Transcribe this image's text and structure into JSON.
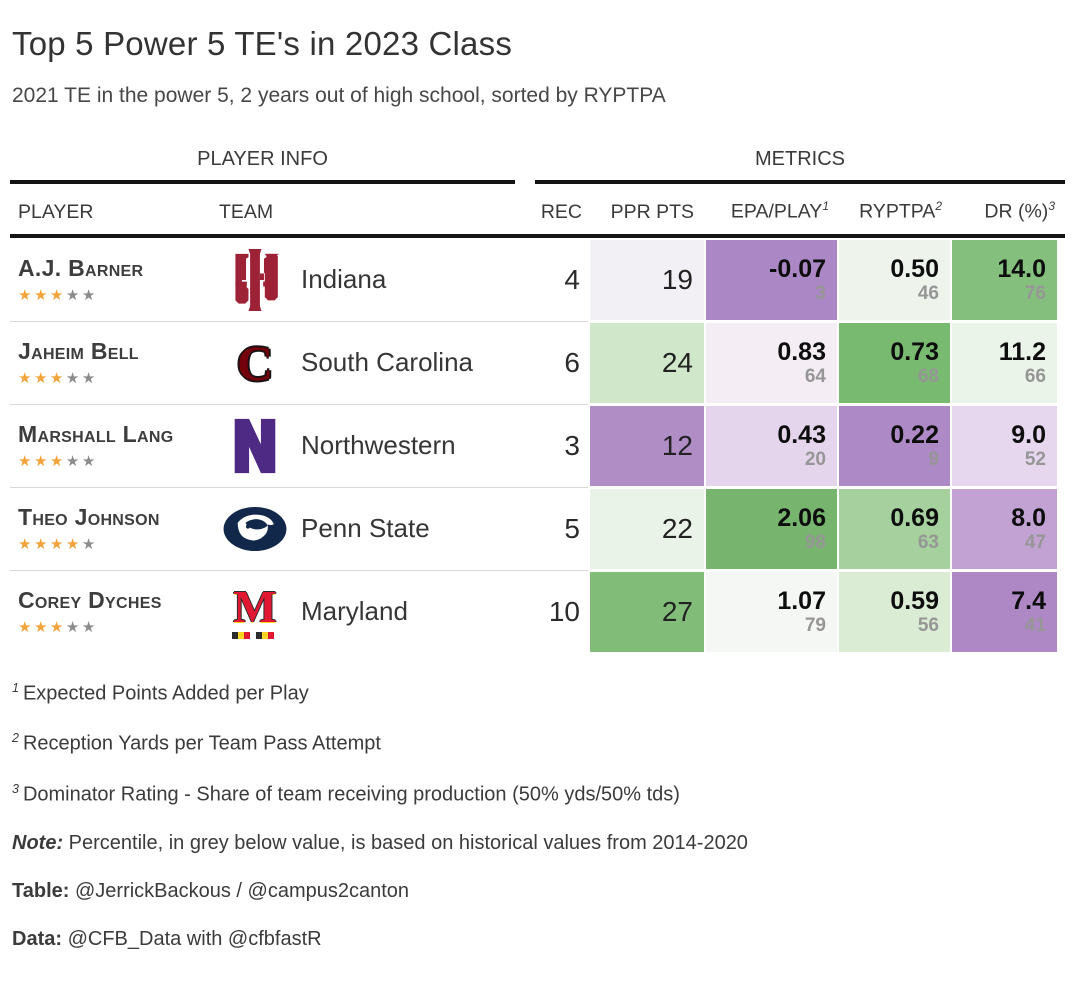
{
  "title": "Top 5 Power 5 TE's in 2023 Class",
  "subtitle": "2021 TE in the power 5, 2 years out of high school, sorted by RYPTPA",
  "table": {
    "groups": {
      "left": "PLAYER INFO",
      "right": "METRICS"
    },
    "columns": {
      "player": "PLAYER",
      "team": "TEAM",
      "rec": "REC",
      "ppr": "PPR PTS",
      "epa": "EPA/PLAY",
      "epa_sup": "1",
      "ryptpa": "RYPTPA",
      "ryptpa_sup": "2",
      "dr": "DR (%)",
      "dr_sup": "3"
    },
    "rows": [
      {
        "player": "A.J. Barner",
        "stars": 3,
        "stars_total": 5,
        "team": "Indiana",
        "logo": "indiana",
        "rec": "4",
        "ppr": {
          "value": "19",
          "bg": "#f3f0f5"
        },
        "epa": {
          "value": "-0.07",
          "pct": "3",
          "bg": "#ab87c5"
        },
        "ryptpa": {
          "value": "0.50",
          "pct": "46",
          "bg": "#eef4ec"
        },
        "dr": {
          "value": "14.0",
          "pct": "76",
          "bg": "#85bf7e"
        }
      },
      {
        "player": "Jaheim Bell",
        "stars": 3,
        "stars_total": 5,
        "team": "South Carolina",
        "logo": "southcarolina",
        "rec": "6",
        "ppr": {
          "value": "24",
          "bg": "#d0e7ca"
        },
        "epa": {
          "value": "0.83",
          "pct": "64",
          "bg": "#f4eef4"
        },
        "ryptpa": {
          "value": "0.73",
          "pct": "68",
          "bg": "#78ba70"
        },
        "dr": {
          "value": "11.2",
          "pct": "66",
          "bg": "#ebf4e8"
        }
      },
      {
        "player": "Marshall Lang",
        "stars": 3,
        "stars_total": 5,
        "team": "Northwestern",
        "logo": "northwestern",
        "rec": "3",
        "ppr": {
          "value": "12",
          "bg": "#b18dc6"
        },
        "epa": {
          "value": "0.43",
          "pct": "20",
          "bg": "#e5d5ec"
        },
        "ryptpa": {
          "value": "0.22",
          "pct": "9",
          "bg": "#ad89c5"
        },
        "dr": {
          "value": "9.0",
          "pct": "52",
          "bg": "#e7d7ee"
        }
      },
      {
        "player": "Theo Johnson",
        "stars": 4,
        "stars_total": 5,
        "team": "Penn State",
        "logo": "pennstate",
        "rec": "5",
        "ppr": {
          "value": "22",
          "bg": "#eaf3e7"
        },
        "epa": {
          "value": "2.06",
          "pct": "98",
          "bg": "#77b56f"
        },
        "ryptpa": {
          "value": "0.69",
          "pct": "63",
          "bg": "#a6d19e"
        },
        "dr": {
          "value": "8.0",
          "pct": "47",
          "bg": "#c2a2d3"
        }
      },
      {
        "player": "Corey Dyches",
        "stars": 3,
        "stars_total": 5,
        "team": "Maryland",
        "logo": "maryland",
        "rec": "10",
        "ppr": {
          "value": "27",
          "bg": "#81bd79"
        },
        "epa": {
          "value": "1.07",
          "pct": "79",
          "bg": "#f5f7f4"
        },
        "ryptpa": {
          "value": "0.59",
          "pct": "56",
          "bg": "#daecd4"
        },
        "dr": {
          "value": "7.4",
          "pct": "41",
          "bg": "#ae88c5"
        }
      }
    ]
  },
  "footnotes": [
    {
      "sup": "1",
      "text": "Expected Points Added per Play"
    },
    {
      "sup": "2",
      "text": "Reception Yards per Team Pass Attempt"
    },
    {
      "sup": "3",
      "text": "Dominator Rating - Share of team receiving production (50% yds/50% tds)"
    }
  ],
  "notes": [
    {
      "label": "Note:",
      "italic": true,
      "text": " Percentile, in grey below value, is based on historical values from 2014-2020"
    },
    {
      "label": "Table:",
      "italic": false,
      "text": " @JerrickBackous / @campus2canton"
    },
    {
      "label": "Data:",
      "italic": false,
      "text": " @CFB_Data with @cfbfastR"
    }
  ],
  "colors": {
    "star_gold": "#F2A33C",
    "star_grey": "#8C8C8C",
    "rule_black": "#141414",
    "separator_grey": "#D9D9D9",
    "percentile_grey": "#969696",
    "team_logos": {
      "indiana": "#9D2235",
      "south_carolina": "#73000A",
      "northwestern": "#4E2A84",
      "penn_state": "#12284B",
      "maryland_red": "#E21833",
      "maryland_gold": "#FFD520"
    }
  },
  "chart_data": {
    "type": "table",
    "title": "Top 5 Power 5 TE's in 2023 Class",
    "subtitle": "2021 TE in the power 5, 2 years out of high school, sorted by RYPTPA",
    "column_groups": [
      "PLAYER INFO",
      "METRICS"
    ],
    "columns": [
      "PLAYER",
      "TEAM",
      "REC",
      "PPR PTS",
      "EPA/PLAY",
      "RYPTPA",
      "DR (%)"
    ],
    "rows": [
      {
        "player": "A.J. Barner",
        "star_rating": 3,
        "team": "Indiana",
        "rec": 4,
        "ppr_pts": 19,
        "epa_play": -0.07,
        "epa_play_percentile": 3,
        "ryptpa": 0.5,
        "ryptpa_percentile": 46,
        "dr_pct": 14.0,
        "dr_percentile": 76
      },
      {
        "player": "Jaheim Bell",
        "star_rating": 3,
        "team": "South Carolina",
        "rec": 6,
        "ppr_pts": 24,
        "epa_play": 0.83,
        "epa_play_percentile": 64,
        "ryptpa": 0.73,
        "ryptpa_percentile": 68,
        "dr_pct": 11.2,
        "dr_percentile": 66
      },
      {
        "player": "Marshall Lang",
        "star_rating": 3,
        "team": "Northwestern",
        "rec": 3,
        "ppr_pts": 12,
        "epa_play": 0.43,
        "epa_play_percentile": 20,
        "ryptpa": 0.22,
        "ryptpa_percentile": 9,
        "dr_pct": 9.0,
        "dr_percentile": 52
      },
      {
        "player": "Theo Johnson",
        "star_rating": 4,
        "team": "Penn State",
        "rec": 5,
        "ppr_pts": 22,
        "epa_play": 2.06,
        "epa_play_percentile": 98,
        "ryptpa": 0.69,
        "ryptpa_percentile": 63,
        "dr_pct": 8.0,
        "dr_percentile": 47
      },
      {
        "player": "Corey Dyches",
        "star_rating": 3,
        "team": "Maryland",
        "rec": 10,
        "ppr_pts": 27,
        "epa_play": 1.07,
        "epa_play_percentile": 79,
        "ryptpa": 0.59,
        "ryptpa_percentile": 56,
        "dr_pct": 7.4,
        "dr_percentile": 41
      }
    ],
    "notes": [
      "1 Expected Points Added per Play",
      "2 Reception Yards per Team Pass Attempt",
      "3 Dominator Rating - Share of team receiving production (50% yds/50% tds)",
      "Note: Percentile, in grey below value, is based on historical values from 2014-2020",
      "Table: @JerrickBackous / @campus2canton",
      "Data: @CFB_Data with @cfbfastR"
    ],
    "color_encoding": "diverging purple (low) to green (high) within each metric column"
  }
}
